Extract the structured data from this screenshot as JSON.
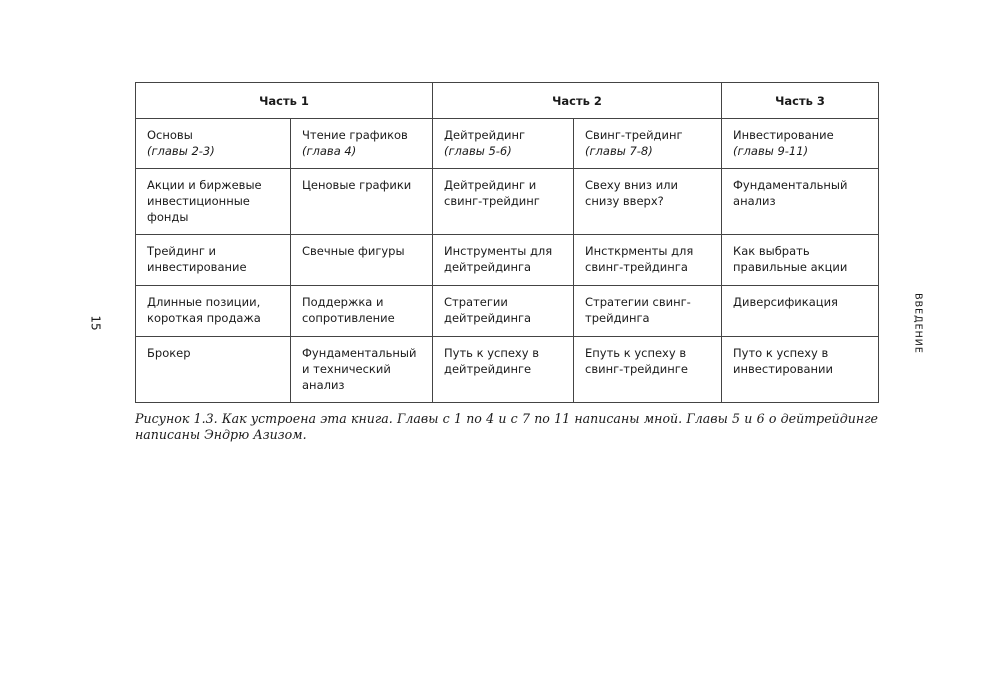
{
  "page_number": "15",
  "side_label": "ВВЕДЕНИЕ",
  "table": {
    "parts": [
      "Часть 1",
      "Часть 2",
      "Часть 3"
    ],
    "heading_row": [
      {
        "title": "Основы",
        "sub": "(главы 2-3)"
      },
      {
        "title": "Чтение графиков",
        "sub": "(глава 4)"
      },
      {
        "title": "Дейтрейдинг",
        "sub": "(главы 5-6)"
      },
      {
        "title": "Свинг-трейдинг",
        "sub": "(главы 7-8)"
      },
      {
        "title": "Инвестирование",
        "sub": "(главы 9-11)"
      }
    ],
    "rows": [
      [
        "Акции и биржевые инвестиционные фонды",
        "Ценовые графики",
        "Дейтрейдинг и свинг-трейдинг",
        "Свеху вниз или снизу вверх?",
        "Фундаментальный анализ"
      ],
      [
        "Трейдинг и инвестирование",
        "Свечные фигуры",
        "Инструменты для дейтрейдинга",
        "Инсткрменты для свинг-трейдинга",
        "Как выбрать правильные акции"
      ],
      [
        "Длинные позиции, короткая продажа",
        "Поддержка и сопротивление",
        "Стратегии дейтрейдинга",
        "Стратегии свинг-трейдинга",
        "Диверсификация"
      ],
      [
        "Брокер",
        "Фундаментальный и технический анализ",
        "Путь к успеху в дейтрейдинге",
        "Епуть к успеху в свинг-трейдинге",
        "Путо к успеху в инвестировании"
      ]
    ]
  },
  "caption": "Рисунок 1.3. Как устроена эта книга. Главы с 1 по 4 и с 7 по 11 написаны мной. Главы 5 и 6 о дейтрейдинге написаны Эндрю Азизом."
}
